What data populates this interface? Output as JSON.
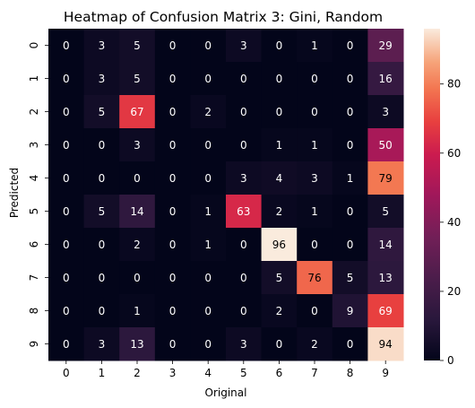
{
  "chart_data": {
    "type": "heatmap",
    "title": "Heatmap of Confusion Matrix 3: Gini, Random",
    "xlabel": "Original",
    "ylabel": "Predicted",
    "x_categories": [
      "0",
      "1",
      "2",
      "3",
      "4",
      "5",
      "6",
      "7",
      "8",
      "9"
    ],
    "y_categories": [
      "0",
      "1",
      "2",
      "3",
      "4",
      "5",
      "6",
      "7",
      "8",
      "9"
    ],
    "values": [
      [
        0,
        3,
        5,
        0,
        0,
        3,
        0,
        1,
        0,
        29
      ],
      [
        0,
        3,
        5,
        0,
        0,
        0,
        0,
        0,
        0,
        16
      ],
      [
        0,
        5,
        67,
        0,
        2,
        0,
        0,
        0,
        0,
        3
      ],
      [
        0,
        0,
        3,
        0,
        0,
        0,
        1,
        1,
        0,
        50
      ],
      [
        0,
        0,
        0,
        0,
        0,
        3,
        4,
        3,
        1,
        79
      ],
      [
        0,
        5,
        14,
        0,
        1,
        63,
        2,
        1,
        0,
        5
      ],
      [
        0,
        0,
        2,
        0,
        1,
        0,
        96,
        0,
        0,
        14
      ],
      [
        0,
        0,
        0,
        0,
        0,
        0,
        5,
        76,
        5,
        13
      ],
      [
        0,
        0,
        1,
        0,
        0,
        0,
        2,
        0,
        9,
        69
      ],
      [
        0,
        3,
        13,
        0,
        0,
        3,
        0,
        2,
        0,
        94
      ]
    ],
    "colormap": "rocket",
    "colorbar": {
      "min": 0,
      "max": 96,
      "ticks": [
        0,
        20,
        40,
        60,
        80
      ]
    }
  }
}
